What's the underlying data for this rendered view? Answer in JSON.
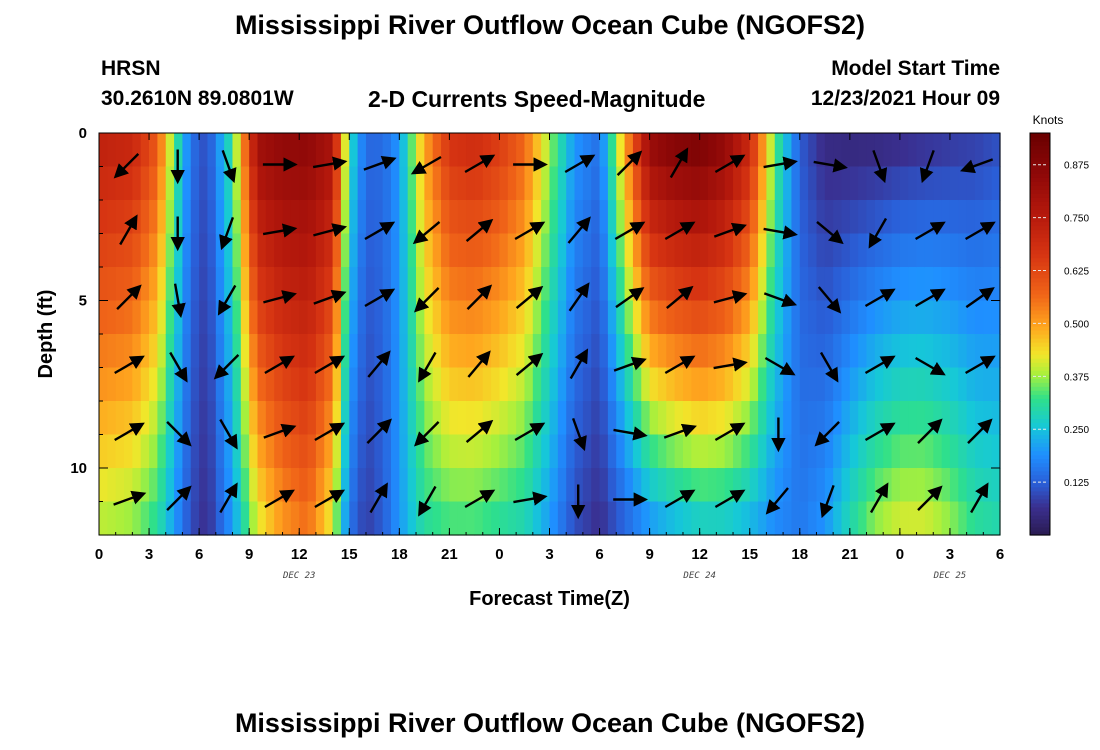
{
  "header": {
    "title": "Mississippi River Outflow Ocean Cube (NGOFS2)",
    "station_code": "HRSN",
    "station_coords": "30.2610N  89.0801W",
    "subtitle": "2-D Currents Speed-Magnitude",
    "model_start_label": "Model Start Time",
    "model_start_value": "12/23/2021 Hour 09"
  },
  "footer": {
    "title": "Mississippi River Outflow Ocean Cube (NGOFS2)"
  },
  "chart_data": {
    "type": "heatmap",
    "title": "2-D Currents Speed-Magnitude",
    "xlabel": "Forecast Time(Z)",
    "ylabel": "Depth (ft)",
    "colorbar_label": "Knots",
    "colorbar_ticks": [
      "0.125",
      "0.250",
      "0.375",
      "0.500",
      "0.625",
      "0.750",
      "0.875"
    ],
    "colorbar_range": [
      0,
      0.95
    ],
    "y_range": [
      0,
      12
    ],
    "y_inverted": true,
    "y_ticks": [
      "0",
      "5",
      "10"
    ],
    "x_range": [
      0,
      54
    ],
    "x_tick_labels": [
      "0",
      "3",
      "6",
      "9",
      "12",
      "15",
      "18",
      "21",
      "0",
      "3",
      "6",
      "9",
      "12",
      "15",
      "18",
      "21",
      "0",
      "3",
      "6"
    ],
    "date_labels": [
      {
        "text": "DEC 23",
        "hour": 12
      },
      {
        "text": "DEC 24",
        "hour": 36
      },
      {
        "text": "DEC 25",
        "hour": 51
      }
    ],
    "depths": [
      1,
      3,
      5,
      7,
      9,
      11
    ],
    "speed_profile": {
      "hours": [
        0,
        2,
        3.5,
        4.5,
        5.5,
        6.5,
        8,
        9.5,
        11,
        12.5,
        14,
        15,
        16,
        17,
        18,
        19.5,
        21,
        22.5,
        24,
        25.5,
        27,
        28.5,
        30,
        31.5,
        33,
        34.5,
        36,
        37.5,
        39,
        40.5,
        42,
        43.5,
        45,
        46.5,
        48,
        49.5,
        51,
        52.5,
        54
      ],
      "surface": [
        0.74,
        0.72,
        0.6,
        0.35,
        0.15,
        0.1,
        0.32,
        0.82,
        0.86,
        0.86,
        0.8,
        0.3,
        0.14,
        0.14,
        0.2,
        0.5,
        0.68,
        0.7,
        0.66,
        0.58,
        0.38,
        0.2,
        0.15,
        0.5,
        0.85,
        0.9,
        0.92,
        0.86,
        0.72,
        0.35,
        0.12,
        0.05,
        0.04,
        0.04,
        0.05,
        0.06,
        0.07,
        0.08,
        0.1
      ],
      "bottom": [
        0.38,
        0.36,
        0.3,
        0.2,
        0.1,
        0.06,
        0.2,
        0.4,
        0.5,
        0.55,
        0.4,
        0.15,
        0.08,
        0.12,
        0.2,
        0.3,
        0.32,
        0.32,
        0.3,
        0.28,
        0.2,
        0.1,
        0.06,
        0.12,
        0.18,
        0.22,
        0.25,
        0.25,
        0.22,
        0.18,
        0.16,
        0.2,
        0.3,
        0.38,
        0.42,
        0.42,
        0.38,
        0.32,
        0.3
      ]
    },
    "vector_hours": [
      1,
      4,
      7,
      10,
      13,
      16,
      19,
      22,
      25,
      28,
      31,
      34,
      37,
      40,
      43,
      46,
      49,
      52
    ],
    "vector_directions_deg": [
      [
        225,
        180,
        160,
        90,
        80,
        70,
        240,
        60,
        90,
        60,
        45,
        30,
        60,
        80,
        100,
        160,
        200,
        250
      ],
      [
        30,
        180,
        200,
        80,
        75,
        60,
        230,
        50,
        60,
        40,
        60,
        60,
        70,
        100,
        130,
        210,
        60,
        60
      ],
      [
        45,
        170,
        210,
        75,
        70,
        60,
        225,
        45,
        50,
        35,
        55,
        50,
        75,
        110,
        140,
        60,
        60,
        55
      ],
      [
        60,
        150,
        225,
        60,
        60,
        40,
        210,
        40,
        50,
        30,
        70,
        60,
        80,
        120,
        150,
        60,
        120,
        60
      ],
      [
        60,
        135,
        150,
        70,
        60,
        45,
        225,
        50,
        60,
        160,
        100,
        70,
        60,
        180,
        225,
        60,
        45,
        45
      ],
      [
        70,
        45,
        30,
        60,
        60,
        30,
        210,
        60,
        80,
        180,
        90,
        60,
        60,
        220,
        200,
        30,
        45,
        30
      ]
    ]
  }
}
